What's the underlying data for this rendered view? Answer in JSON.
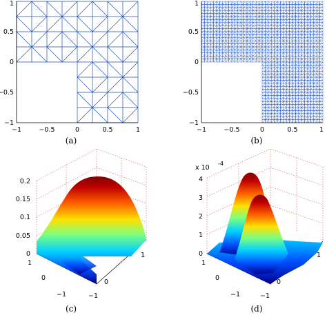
{
  "panels": [
    {
      "id": "a",
      "caption": "(a)",
      "kind": "coarse-mesh",
      "xticks": [
        "−1",
        "−0.5",
        "0",
        "0.5",
        "1"
      ],
      "yticks": [
        "1",
        "0.5",
        "0",
        "−0.5",
        "−1"
      ]
    },
    {
      "id": "b",
      "caption": "(b)",
      "kind": "fine-mesh",
      "xticks": [
        "−1",
        "−0.5",
        "0",
        "0.5",
        "1"
      ],
      "yticks": [
        "1",
        "0.5",
        "0",
        "−0.5",
        "−1"
      ]
    },
    {
      "id": "c",
      "caption": "(c)",
      "kind": "surface",
      "zticks": [
        "0.2",
        "0.15",
        "0.1",
        "0.05",
        "0"
      ],
      "left_axis_ticks": [
        "1",
        "0",
        "−1"
      ],
      "right_axis_ticks": [
        "−1",
        "0",
        "1"
      ]
    },
    {
      "id": "d",
      "caption": "(d)",
      "kind": "surface",
      "scale_label": "x 10",
      "scale_exponent": "-4",
      "zticks": [
        "4",
        "3",
        "2",
        "1",
        "0"
      ],
      "left_axis_ticks": [
        "1",
        "0",
        "−1"
      ],
      "right_axis_ticks": [
        "−1",
        "0",
        "1"
      ]
    }
  ],
  "colormap": [
    "#00008f",
    "#0050ff",
    "#00d0ff",
    "#7fff7f",
    "#ffe000",
    "#ff6000",
    "#c00000",
    "#7f0000"
  ]
}
